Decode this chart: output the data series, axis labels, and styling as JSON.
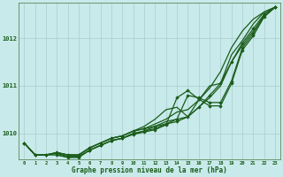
{
  "xlabel": "Graphe pression niveau de la mer (hPa)",
  "background_color": "#c8eaea",
  "plot_bg_color": "#c8eaea",
  "grid_color": "#aacccc",
  "line_color": "#1a5c1a",
  "marker_color": "#1a5c1a",
  "xlim": [
    -0.5,
    23.5
  ],
  "ylim": [
    1009.45,
    1012.75
  ],
  "yticks": [
    1010,
    1011,
    1012
  ],
  "xticks": [
    0,
    1,
    2,
    3,
    4,
    5,
    6,
    7,
    8,
    9,
    10,
    11,
    12,
    13,
    14,
    15,
    16,
    17,
    18,
    19,
    20,
    21,
    22,
    23
  ],
  "series": [
    {
      "x": [
        0,
        1,
        2,
        3,
        4,
        5,
        6,
        7,
        8,
        9,
        10,
        11,
        12,
        13,
        14,
        15,
        16,
        17,
        18,
        19,
        20,
        21,
        22,
        23
      ],
      "y": [
        1009.8,
        1009.55,
        1009.55,
        1009.6,
        1009.55,
        1009.55,
        1009.7,
        1009.8,
        1009.9,
        1009.95,
        1010.05,
        1010.1,
        1010.15,
        1010.2,
        1010.25,
        1010.35,
        1010.55,
        1010.8,
        1011.05,
        1011.5,
        1011.9,
        1012.2,
        1012.5,
        1012.65
      ],
      "marker": true,
      "linewidth": 0.9
    },
    {
      "x": [
        0,
        1,
        2,
        3,
        4,
        5,
        6,
        7,
        8,
        9,
        10,
        11,
        12,
        13,
        14,
        15,
        16,
        17,
        18,
        19,
        20,
        21,
        22,
        23
      ],
      "y": [
        1009.8,
        1009.55,
        1009.55,
        1009.6,
        1009.55,
        1009.55,
        1009.7,
        1009.8,
        1009.9,
        1009.95,
        1010.05,
        1010.1,
        1010.2,
        1010.3,
        1010.45,
        1010.5,
        1010.7,
        1010.95,
        1011.3,
        1011.8,
        1012.15,
        1012.4,
        1012.55,
        1012.65
      ],
      "marker": false,
      "linewidth": 0.9
    },
    {
      "x": [
        0,
        1,
        2,
        3,
        4,
        5,
        6,
        7,
        8,
        9,
        10,
        11,
        12,
        13,
        14,
        15,
        16,
        17,
        18,
        19,
        20,
        21,
        22,
        23
      ],
      "y": [
        1009.8,
        1009.55,
        1009.55,
        1009.6,
        1009.55,
        1009.55,
        1009.7,
        1009.8,
        1009.9,
        1009.95,
        1010.05,
        1010.15,
        1010.3,
        1010.5,
        1010.55,
        1010.35,
        1010.7,
        1011.0,
        1011.05,
        1011.65,
        1011.95,
        1012.3,
        1012.55,
        1012.65
      ],
      "marker": false,
      "linewidth": 0.9
    },
    {
      "x": [
        0,
        1,
        2,
        3,
        4,
        5,
        6,
        7,
        8,
        9,
        10,
        11,
        12,
        13,
        14,
        15,
        16,
        17,
        18,
        19,
        20,
        21,
        22,
        23
      ],
      "y": [
        1009.8,
        1009.55,
        1009.55,
        1009.55,
        1009.5,
        1009.5,
        1009.65,
        1009.75,
        1009.85,
        1009.9,
        1010.0,
        1010.05,
        1010.15,
        1010.25,
        1010.3,
        1010.35,
        1010.55,
        1010.75,
        1011.0,
        1011.5,
        1011.85,
        1012.15,
        1012.45,
        1012.65
      ],
      "marker": false,
      "linewidth": 0.9
    },
    {
      "x": [
        3,
        4,
        5,
        6,
        7,
        8,
        9,
        10,
        11,
        12,
        13,
        14,
        15,
        16,
        17,
        18,
        19,
        20,
        21,
        22,
        23
      ],
      "y": [
        1009.55,
        1009.5,
        1009.5,
        1009.65,
        1009.75,
        1009.85,
        1009.9,
        1010.0,
        1010.05,
        1010.1,
        1010.2,
        1010.3,
        1010.8,
        1010.75,
        1010.65,
        1010.65,
        1011.1,
        1011.8,
        1012.1,
        1012.5,
        1012.65
      ],
      "marker": true,
      "linewidth": 0.9
    },
    {
      "x": [
        0,
        1,
        2,
        3,
        4,
        5,
        6,
        7,
        8,
        9,
        10,
        11,
        12,
        13,
        14,
        15,
        16,
        17,
        18,
        19,
        20,
        21,
        22,
        23
      ],
      "y": [
        1009.8,
        1009.55,
        1009.55,
        1009.58,
        1009.52,
        1009.52,
        1009.65,
        1009.75,
        1009.85,
        1009.9,
        1009.98,
        1010.03,
        1010.08,
        1010.18,
        1010.75,
        1010.9,
        1010.72,
        1010.58,
        1010.58,
        1011.05,
        1011.75,
        1012.05,
        1012.45,
        1012.65
      ],
      "marker": true,
      "linewidth": 0.9
    }
  ]
}
